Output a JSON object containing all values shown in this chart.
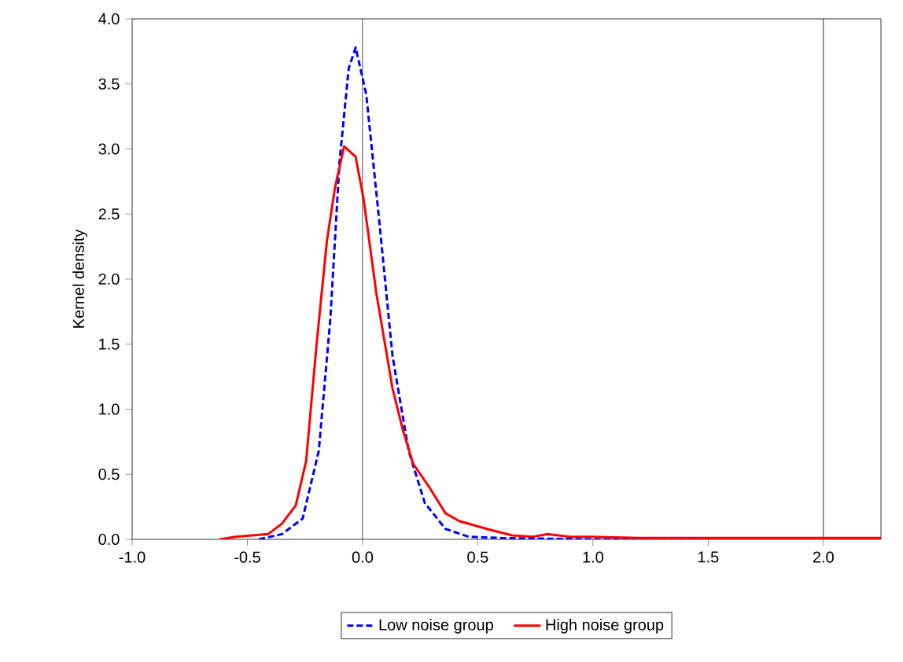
{
  "chart_data": {
    "type": "line",
    "ylabel": "Kernel density",
    "xlim": [
      -1.0,
      2.25
    ],
    "ylim": [
      0,
      4.0
    ],
    "xticks": [
      {
        "value": -1.0,
        "label": "-1.0"
      },
      {
        "value": -0.5,
        "label": "-0.5"
      },
      {
        "value": 0,
        "label": "0.0"
      },
      {
        "value": 0.5,
        "label": "0.5"
      },
      {
        "value": 1.0,
        "label": "1.0"
      },
      {
        "value": 1.5,
        "label": "1.5"
      },
      {
        "value": 2.0,
        "label": "2.0"
      }
    ],
    "yticks": [
      {
        "value": 0,
        "label": "0.0"
      },
      {
        "value": 0.5,
        "label": "0.5"
      },
      {
        "value": 1.0,
        "label": "1.0"
      },
      {
        "value": 1.5,
        "label": "1.5"
      },
      {
        "value": 2.0,
        "label": "2.0"
      },
      {
        "value": 2.5,
        "label": "2.5"
      },
      {
        "value": 3.0,
        "label": "3.0"
      },
      {
        "value": 3.5,
        "label": "3.5"
      },
      {
        "value": 4.0,
        "label": "4.0"
      }
    ],
    "legend": "bottom",
    "grid": false,
    "marker": "none",
    "ref_lines": [
      {
        "axis": "x",
        "value": 0,
        "color": "#000000"
      },
      {
        "axis": "x",
        "value": 2.0,
        "color": "#000000"
      }
    ],
    "series": [
      {
        "name": "Low noise group",
        "color": "#0000ff",
        "line_style": "dashed",
        "x": [
          -0.45,
          -0.35,
          -0.26,
          -0.19,
          -0.14,
          -0.1,
          -0.06,
          -0.03,
          0.016,
          0.07,
          0.13,
          0.2,
          0.27,
          0.36,
          0.46,
          0.6,
          1.0,
          1.5
        ],
        "values": [
          0,
          0.04,
          0.16,
          0.68,
          1.69,
          2.9,
          3.62,
          3.78,
          3.42,
          2.49,
          1.41,
          0.68,
          0.28,
          0.08,
          0.02,
          0.01,
          0,
          0
        ]
      },
      {
        "name": "High noise group",
        "color": "#ff0000",
        "line_style": "solid",
        "x": [
          -0.62,
          -0.55,
          -0.41,
          -0.35,
          -0.29,
          -0.245,
          -0.2,
          -0.155,
          -0.12,
          -0.08,
          -0.03,
          0.005,
          0.06,
          0.13,
          0.175,
          0.22,
          0.29,
          0.36,
          0.42,
          0.54,
          0.65,
          0.74,
          0.8,
          0.9,
          1.0,
          1.2,
          1.5,
          2.0,
          2.25
        ],
        "values": [
          0,
          0.02,
          0.04,
          0.12,
          0.26,
          0.6,
          1.49,
          2.29,
          2.7,
          3.02,
          2.94,
          2.61,
          1.89,
          1.16,
          0.84,
          0.58,
          0.4,
          0.2,
          0.14,
          0.08,
          0.03,
          0.02,
          0.04,
          0.02,
          0.02,
          0.01,
          0.01,
          0.01,
          0.01
        ]
      }
    ]
  }
}
